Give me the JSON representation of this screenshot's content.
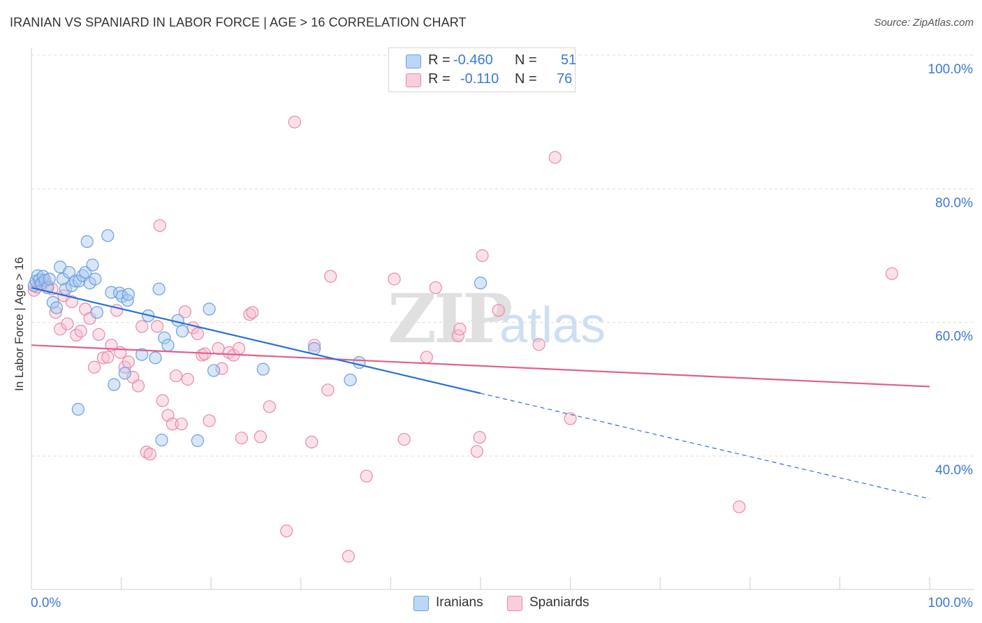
{
  "header": {
    "title": "IRANIAN VS SPANIARD IN LABOR FORCE | AGE > 16 CORRELATION CHART",
    "source": "Source: ZipAtlas.com"
  },
  "legend": {
    "iranians": {
      "r_label": "R =",
      "r_value": "-0.460",
      "n_label": "N =",
      "n_value": "51"
    },
    "spaniards": {
      "r_label": "R =",
      "r_value": "-0.110",
      "n_label": "N =",
      "n_value": "76"
    }
  },
  "colors": {
    "iranians_fill": "#a8c8f0",
    "iranians_stroke": "#6a9fe0",
    "iranians_line": "#2b6fd6",
    "spaniards_fill": "#f7bcd0",
    "spaniards_stroke": "#e88aaa",
    "spaniards_line": "#e0608a",
    "axis_text": "#3b78d8"
  },
  "watermark": {
    "zip": "ZIP",
    "atlas": "atlas"
  },
  "chart_data": {
    "type": "scatter",
    "title": "IRANIAN VS SPANIARD IN LABOR FORCE | AGE > 16 CORRELATION CHART",
    "xlabel": "",
    "ylabel": "In Labor Force | Age > 16",
    "xlim": [
      0,
      100
    ],
    "ylim": [
      20,
      102
    ],
    "x_tick_labels": [
      "0.0%",
      "100.0%"
    ],
    "y_ticks": [
      40,
      60,
      80,
      100
    ],
    "y_tick_labels": [
      "40.0%",
      "60.0%",
      "80.0%",
      "100.0%"
    ],
    "grid": true,
    "legend_position": "top-center",
    "series": [
      {
        "name": "Iranians",
        "regression": {
          "x0": 0,
          "y0": 65.2,
          "x1": 50,
          "y1": 49.4,
          "dashed_to_x": 100,
          "dashed_to_y": 33.6
        },
        "points": [
          [
            0.3,
            65.5
          ],
          [
            0.5,
            66.2
          ],
          [
            0.7,
            67.0
          ],
          [
            0.9,
            66.4
          ],
          [
            1.1,
            65.8
          ],
          [
            1.3,
            66.9
          ],
          [
            1.5,
            66.3
          ],
          [
            1.8,
            65.2
          ],
          [
            2.0,
            66.5
          ],
          [
            2.4,
            63.0
          ],
          [
            2.8,
            62.2
          ],
          [
            3.2,
            68.3
          ],
          [
            3.5,
            66.5
          ],
          [
            3.8,
            65.0
          ],
          [
            4.2,
            67.5
          ],
          [
            4.5,
            65.5
          ],
          [
            4.9,
            66.2
          ],
          [
            5.3,
            66.2
          ],
          [
            5.7,
            67.0
          ],
          [
            6.0,
            67.5
          ],
          [
            6.2,
            72.1
          ],
          [
            6.5,
            65.9
          ],
          [
            6.8,
            68.6
          ],
          [
            7.1,
            66.5
          ],
          [
            7.3,
            61.5
          ],
          [
            8.5,
            73.0
          ],
          [
            8.9,
            64.5
          ],
          [
            9.2,
            50.7
          ],
          [
            9.8,
            64.4
          ],
          [
            10.1,
            63.9
          ],
          [
            10.4,
            52.4
          ],
          [
            10.7,
            63.3
          ],
          [
            12.3,
            55.2
          ],
          [
            13.0,
            61.0
          ],
          [
            13.8,
            54.7
          ],
          [
            14.2,
            65.0
          ],
          [
            14.5,
            42.4
          ],
          [
            14.8,
            57.7
          ],
          [
            15.2,
            56.6
          ],
          [
            16.3,
            60.3
          ],
          [
            16.8,
            58.7
          ],
          [
            18.5,
            42.3
          ],
          [
            19.8,
            62.0
          ],
          [
            20.3,
            52.8
          ],
          [
            25.8,
            53.0
          ],
          [
            31.5,
            56.1
          ],
          [
            35.5,
            51.4
          ],
          [
            36.5,
            54.0
          ],
          [
            50.0,
            65.9
          ],
          [
            5.2,
            47.0
          ],
          [
            10.8,
            64.2
          ]
        ]
      },
      {
        "name": "Spaniards",
        "regression": {
          "x0": 0,
          "y0": 56.6,
          "x1": 100,
          "y1": 50.4
        },
        "points": [
          [
            0.3,
            64.8
          ],
          [
            0.6,
            65.3
          ],
          [
            1.0,
            65.8
          ],
          [
            1.4,
            66.0
          ],
          [
            1.8,
            65.5
          ],
          [
            2.3,
            65.0
          ],
          [
            2.7,
            61.5
          ],
          [
            3.2,
            59.0
          ],
          [
            3.6,
            64.0
          ],
          [
            4.0,
            59.8
          ],
          [
            4.5,
            63.1
          ],
          [
            5.0,
            58.1
          ],
          [
            5.5,
            58.7
          ],
          [
            6.0,
            62.0
          ],
          [
            6.5,
            60.6
          ],
          [
            7.0,
            53.3
          ],
          [
            7.5,
            58.2
          ],
          [
            8.0,
            54.7
          ],
          [
            8.5,
            54.8
          ],
          [
            8.9,
            56.6
          ],
          [
            9.5,
            61.8
          ],
          [
            9.9,
            55.5
          ],
          [
            10.4,
            53.3
          ],
          [
            10.8,
            54.1
          ],
          [
            11.3,
            51.8
          ],
          [
            11.9,
            50.5
          ],
          [
            12.3,
            59.4
          ],
          [
            12.8,
            40.6
          ],
          [
            13.2,
            40.3
          ],
          [
            14.0,
            59.4
          ],
          [
            14.3,
            74.5
          ],
          [
            14.6,
            48.3
          ],
          [
            15.2,
            46.1
          ],
          [
            15.7,
            44.8
          ],
          [
            16.1,
            52.0
          ],
          [
            16.7,
            44.8
          ],
          [
            17.1,
            61.6
          ],
          [
            17.4,
            51.5
          ],
          [
            18.0,
            59.2
          ],
          [
            18.5,
            58.3
          ],
          [
            19.0,
            55.1
          ],
          [
            19.3,
            55.3
          ],
          [
            19.8,
            45.3
          ],
          [
            20.8,
            56.1
          ],
          [
            21.2,
            53.1
          ],
          [
            22.0,
            55.5
          ],
          [
            22.5,
            55.1
          ],
          [
            23.1,
            56.1
          ],
          [
            23.4,
            42.7
          ],
          [
            24.3,
            61.2
          ],
          [
            24.6,
            61.5
          ],
          [
            25.5,
            42.9
          ],
          [
            26.5,
            47.4
          ],
          [
            28.4,
            28.8
          ],
          [
            29.3,
            90.0
          ],
          [
            31.2,
            42.1
          ],
          [
            31.5,
            56.6
          ],
          [
            33.0,
            49.9
          ],
          [
            33.3,
            66.9
          ],
          [
            35.3,
            25.0
          ],
          [
            37.3,
            37.0
          ],
          [
            40.4,
            66.5
          ],
          [
            41.5,
            42.5
          ],
          [
            44.0,
            54.8
          ],
          [
            45.0,
            65.2
          ],
          [
            47.5,
            58.0
          ],
          [
            47.7,
            59.0
          ],
          [
            49.6,
            40.7
          ],
          [
            49.9,
            42.8
          ],
          [
            50.2,
            70.0
          ],
          [
            52.0,
            61.8
          ],
          [
            56.5,
            56.7
          ],
          [
            58.3,
            84.7
          ],
          [
            60.0,
            45.6
          ],
          [
            78.8,
            32.4
          ],
          [
            95.8,
            67.3
          ]
        ]
      }
    ]
  }
}
